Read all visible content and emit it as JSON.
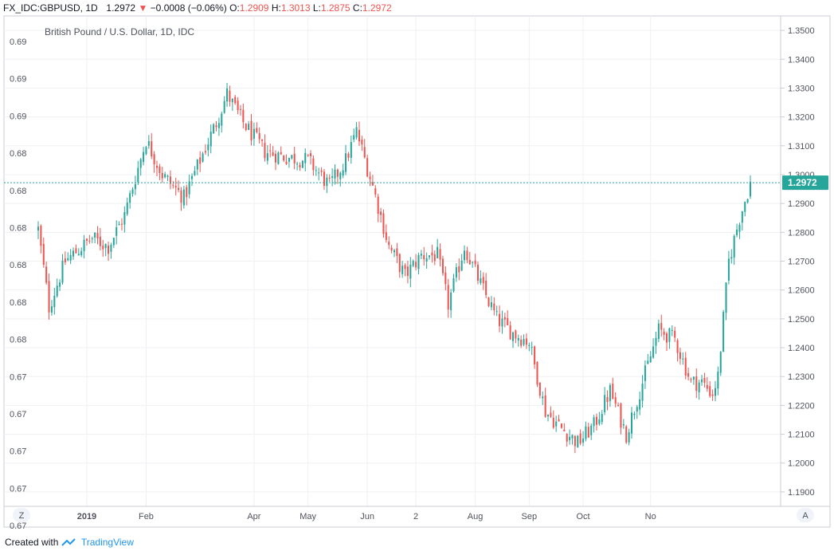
{
  "header": {
    "symbol": "FX_IDC:GBPUSD, 1D",
    "last": "1.2972",
    "change": "−0.0008 (−0.06%)",
    "open_label": "O:",
    "open": "1.2909",
    "high_label": "H:",
    "high": "1.3013",
    "low_label": "L:",
    "low": "1.2875",
    "close_label": "C:",
    "close": "1.2972",
    "down_arrow": "▼"
  },
  "colors": {
    "up": "#26a69a",
    "down": "#ef5350",
    "price_line": "#26a69a",
    "grid": "#eef0f3"
  },
  "footer": {
    "created_with": "Created with",
    "brand": "TradingView",
    "brand_icon": "tradingview-logo-icon"
  },
  "buttons": {
    "left": "Z",
    "right": "A"
  },
  "chart_data": {
    "type": "candlestick",
    "title": "British Pound / U.S. Dollar, 1D, IDC",
    "right_axis": {
      "ticks": [
        "1.3500",
        "1.3400",
        "1.3300",
        "1.3200",
        "1.3100",
        "1.3000",
        "1.2900",
        "1.2800",
        "1.2700",
        "1.2600",
        "1.2500",
        "1.2400",
        "1.2300",
        "1.2200",
        "1.2100",
        "1.2000",
        "1.1900"
      ],
      "ylim": [
        1.185,
        1.355
      ]
    },
    "left_axis": {
      "ticks": [
        "0.69",
        "0.69",
        "0.69",
        "0.68",
        "0.68",
        "0.68",
        "0.68",
        "0.68",
        "0.68",
        "0.67",
        "0.67",
        "0.67",
        "0.67",
        "0.67"
      ]
    },
    "x_ticks": [
      "2019",
      "Feb",
      "Apr",
      "May",
      "Jun",
      "2",
      "Aug",
      "Sep",
      "Oct",
      "No"
    ],
    "last_price_label": "1.2972",
    "last_price": 1.2972,
    "grid": true,
    "close_path": [
      {
        "i": 0,
        "v": 1.281
      },
      {
        "i": 4,
        "v": 1.254
      },
      {
        "i": 10,
        "v": 1.27
      },
      {
        "i": 20,
        "v": 1.278
      },
      {
        "i": 26,
        "v": 1.275
      },
      {
        "i": 32,
        "v": 1.286
      },
      {
        "i": 40,
        "v": 1.312
      },
      {
        "i": 46,
        "v": 1.3
      },
      {
        "i": 54,
        "v": 1.292
      },
      {
        "i": 60,
        "v": 1.305
      },
      {
        "i": 66,
        "v": 1.318
      },
      {
        "i": 70,
        "v": 1.328
      },
      {
        "i": 76,
        "v": 1.318
      },
      {
        "i": 84,
        "v": 1.308
      },
      {
        "i": 92,
        "v": 1.306
      },
      {
        "i": 100,
        "v": 1.305
      },
      {
        "i": 108,
        "v": 1.296
      },
      {
        "i": 114,
        "v": 1.305
      },
      {
        "i": 118,
        "v": 1.315
      },
      {
        "i": 124,
        "v": 1.296
      },
      {
        "i": 130,
        "v": 1.275
      },
      {
        "i": 136,
        "v": 1.265
      },
      {
        "i": 142,
        "v": 1.272
      },
      {
        "i": 148,
        "v": 1.272
      },
      {
        "i": 152,
        "v": 1.255
      },
      {
        "i": 158,
        "v": 1.275
      },
      {
        "i": 164,
        "v": 1.262
      },
      {
        "i": 170,
        "v": 1.25
      },
      {
        "i": 176,
        "v": 1.245
      },
      {
        "i": 182,
        "v": 1.242
      },
      {
        "i": 188,
        "v": 1.218
      },
      {
        "i": 194,
        "v": 1.212
      },
      {
        "i": 200,
        "v": 1.207
      },
      {
        "i": 206,
        "v": 1.213
      },
      {
        "i": 212,
        "v": 1.225
      },
      {
        "i": 218,
        "v": 1.21
      },
      {
        "i": 224,
        "v": 1.228
      },
      {
        "i": 230,
        "v": 1.246
      },
      {
        "i": 236,
        "v": 1.243
      },
      {
        "i": 242,
        "v": 1.228
      },
      {
        "i": 246,
        "v": 1.228
      },
      {
        "i": 250,
        "v": 1.224
      },
      {
        "i": 252,
        "v": 1.23
      },
      {
        "i": 256,
        "v": 1.27
      },
      {
        "i": 260,
        "v": 1.285
      },
      {
        "i": 264,
        "v": 1.297
      }
    ],
    "n_candles": 265
  }
}
